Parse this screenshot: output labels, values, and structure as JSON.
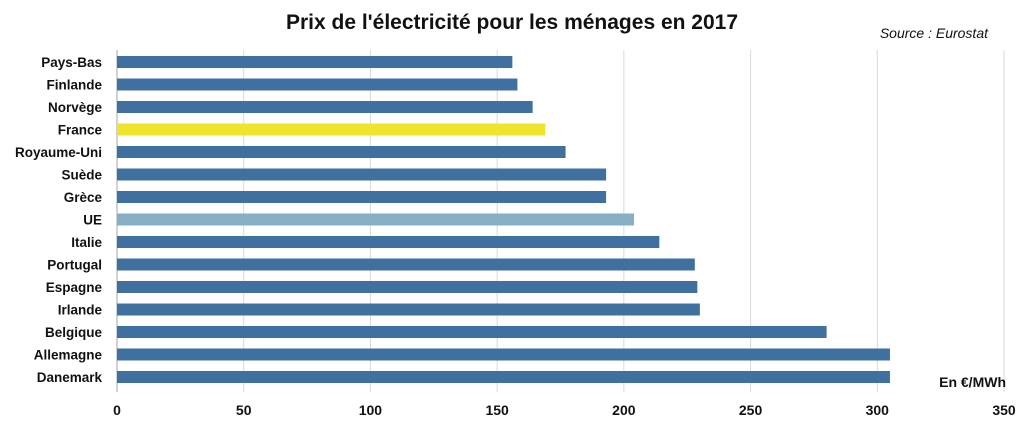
{
  "chart_data": {
    "type": "bar",
    "orientation": "horizontal",
    "title": "Prix de l'électricité pour les ménages en 2017",
    "source": "Source : Eurostat",
    "unit_label": "En €/MWh",
    "categories": [
      "Pays-Bas",
      "Finlande",
      "Norvège",
      "France",
      "Royaume-Uni",
      "Suède",
      "Grèce",
      "UE",
      "Italie",
      "Portugal",
      "Espagne",
      "Irlande",
      "Belgique",
      "Allemagne",
      "Danemark"
    ],
    "values": [
      156,
      158,
      164,
      169,
      177,
      193,
      193,
      204,
      214,
      228,
      229,
      230,
      280,
      305,
      305
    ],
    "highlight": {
      "France": "#f0e32b",
      "UE": "#87aec4"
    },
    "default_color": "#3f70a0",
    "xlim": [
      0,
      350
    ],
    "xticks": [
      0,
      50,
      100,
      150,
      200,
      250,
      300,
      350
    ],
    "grid": true
  }
}
